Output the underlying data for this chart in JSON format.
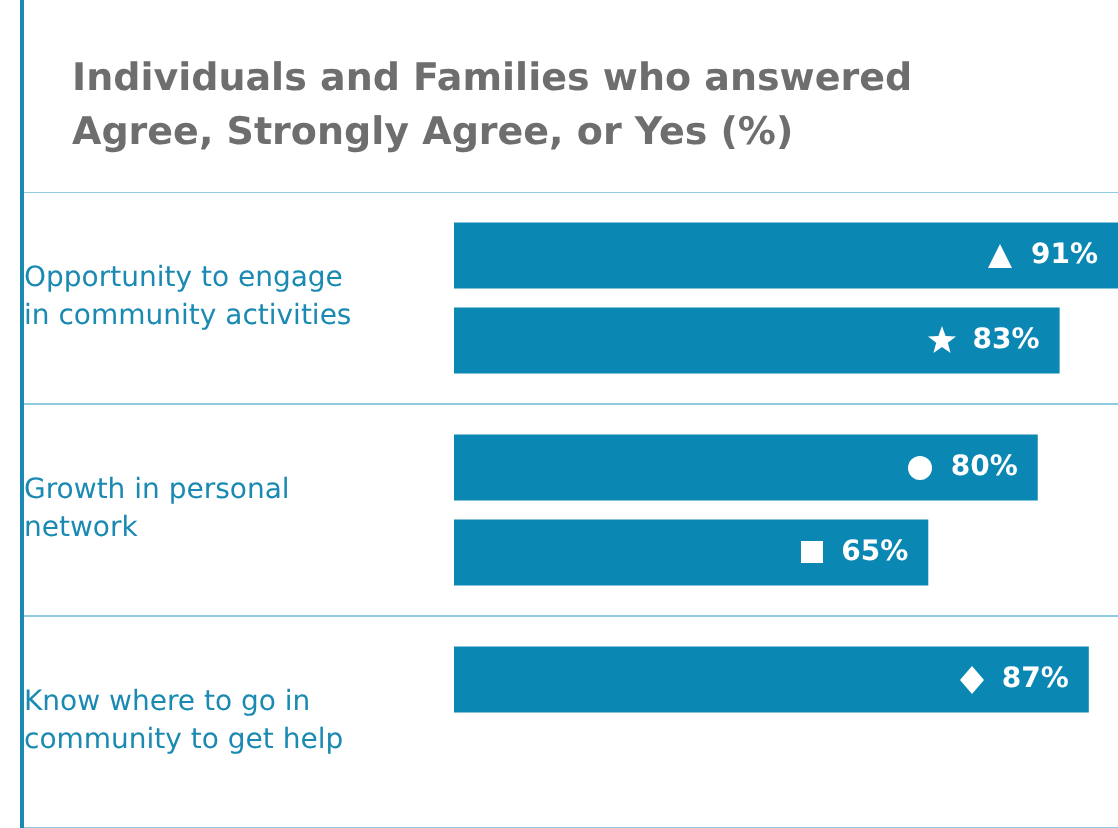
{
  "chart_data": {
    "type": "bar",
    "orientation": "horizontal",
    "title": "Individuals and Families who answered Agree, Strongly Agree, or Yes (%)",
    "categories": [
      "Opportunity to engage in community activities",
      "Growth in personal network",
      "Know where to go in community to get help"
    ],
    "series": [
      {
        "color": "#0b87b3",
        "values": [
          91,
          80,
          87
        ],
        "value_labels": [
          "91%",
          "80%",
          "87%"
        ]
      },
      {
        "color": "#0b87b3",
        "values": [
          83,
          65,
          null
        ],
        "value_labels": [
          "83%",
          "65%",
          null
        ]
      }
    ],
    "grid": "y",
    "legend": false,
    "tick_labels": "y"
  }
}
